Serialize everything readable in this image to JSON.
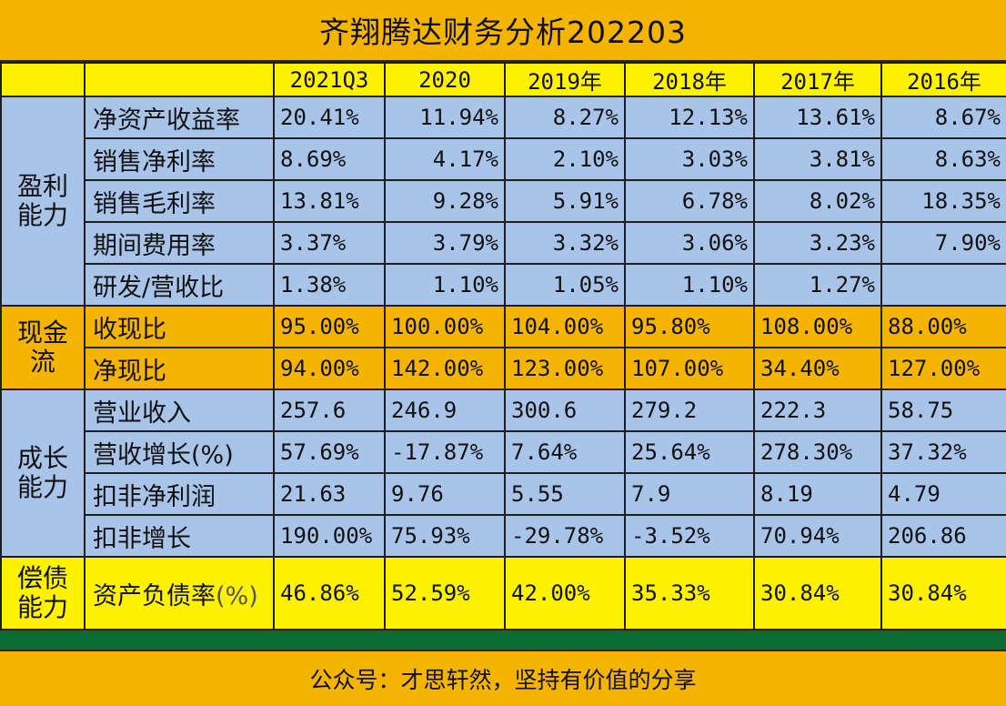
{
  "title": "齐翔腾达财务分析202203",
  "columns": [
    "2021Q3",
    "2020",
    "2019年",
    "2018年",
    "2017年",
    "2016年"
  ],
  "groups": {
    "profit": "盈利\n能力",
    "cash": "现金\n流",
    "growth": "成长\n能力",
    "debt": "偿债\n能力"
  },
  "rows": {
    "roe": {
      "label": "净资产收益率",
      "values": [
        "20.41%",
        "11.94%",
        "8.27%",
        "12.13%",
        "13.61%",
        "8.67%"
      ]
    },
    "net_margin": {
      "label": "销售净利率",
      "values": [
        "8.69%",
        "4.17%",
        "2.10%",
        "3.03%",
        "3.81%",
        "8.63%"
      ]
    },
    "gross_margin": {
      "label": "销售毛利率",
      "values": [
        "13.81%",
        "9.28%",
        "5.91%",
        "6.78%",
        "8.02%",
        "18.35%"
      ]
    },
    "expense_rate": {
      "label": "期间费用率",
      "values": [
        "3.37%",
        "3.79%",
        "3.32%",
        "3.06%",
        "3.23%",
        "7.90%"
      ]
    },
    "rd_ratio": {
      "label": "研发/营收比",
      "values": [
        "1.38%",
        "1.10%",
        "1.05%",
        "1.10%",
        "1.27%",
        ""
      ]
    },
    "cash_revenue": {
      "label": "收现比",
      "values": [
        "95.00%",
        "100.00%",
        "104.00%",
        "95.80%",
        "108.00%",
        "88.00%"
      ]
    },
    "cash_profit": {
      "label": "净现比",
      "values": [
        "94.00%",
        "142.00%",
        "123.00%",
        "107.00%",
        "34.40%",
        "127.00%"
      ]
    },
    "revenue": {
      "label": "营业收入",
      "values": [
        "257.6",
        "246.9",
        "300.6",
        "279.2",
        "222.3",
        "58.75"
      ]
    },
    "revenue_growth": {
      "label": "营收增长(%)",
      "values": [
        "57.69%",
        "-17.87%",
        "7.64%",
        "25.64%",
        "278.30%",
        "37.32%"
      ]
    },
    "core_profit": {
      "label": "扣非净利润",
      "values": [
        "21.63",
        "9.76",
        "5.55",
        "7.9",
        "8.19",
        "4.79"
      ]
    },
    "core_growth": {
      "label": "扣非增长",
      "values": [
        "190.00%",
        "75.93%",
        "-29.78%",
        "-3.52%",
        "70.94%",
        "206.86"
      ]
    },
    "debt_ratio": {
      "label": "资产负债率",
      "label_suffix": "(%)",
      "values": [
        "46.86%",
        "52.59%",
        "42.00%",
        "35.33%",
        "30.84%",
        "30.84%"
      ]
    }
  },
  "footer": "公众号：才思轩然，坚持有价值的分享",
  "colors": {
    "blue": "#a8c4e8",
    "orange": "#f5b400",
    "yellow": "#fff200",
    "green": "#0a6b33"
  }
}
